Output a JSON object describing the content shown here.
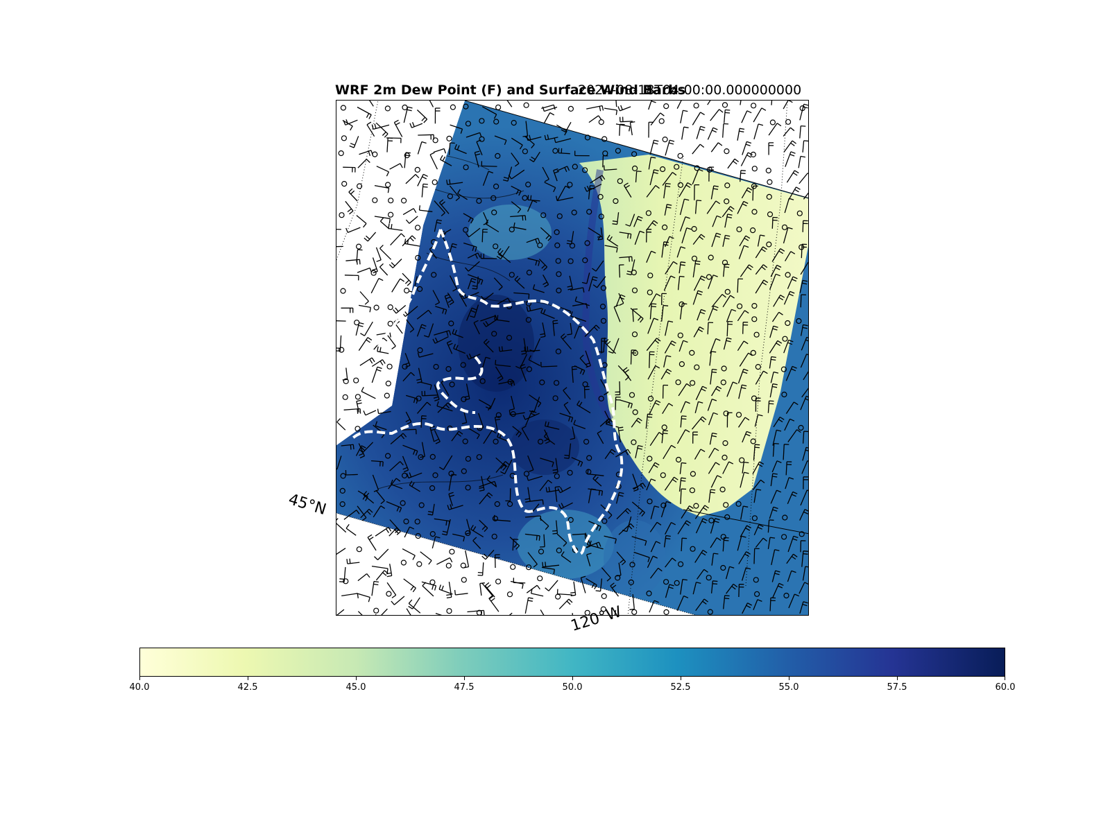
{
  "figure": {
    "title": "WRF 2m Dew Point (F) and Surface Wind Barbs",
    "timestamp": "2024-08-18T04:00:00.000000000"
  },
  "map": {
    "lat_label": "45°N",
    "lon_label": "120°W",
    "colormap": "YlGnBu",
    "colors": {
      "low": "#ffffd9",
      "mid": "#41b6c4",
      "high": "#081d58",
      "boundary": "#ffffff",
      "barbs": "#000000"
    }
  },
  "colorbar": {
    "min": 40.0,
    "max": 60.0,
    "ticks": [
      "40.0",
      "42.5",
      "45.0",
      "47.5",
      "50.0",
      "52.5",
      "55.0",
      "57.5",
      "60.0"
    ]
  },
  "chart_data": {
    "type": "heatmap",
    "title": "WRF 2m Dew Point (F) and Surface Wind Barbs",
    "subtitle": "2024-08-18T04:00:00.000000000",
    "colorbar_range": [
      40.0,
      60.0
    ],
    "colorbar_ticks": [
      40.0,
      42.5,
      45.0,
      47.5,
      50.0,
      52.5,
      55.0,
      57.5,
      60.0
    ],
    "graticule_labels": [
      "45°N",
      "120°W"
    ],
    "field_description": "dew point high (55–60 F) over western/central domain, low (40–44 F) over eastern plains",
    "overlays": [
      "surface wind barbs",
      "dashed white state/coast boundary",
      "black contour lines"
    ]
  }
}
